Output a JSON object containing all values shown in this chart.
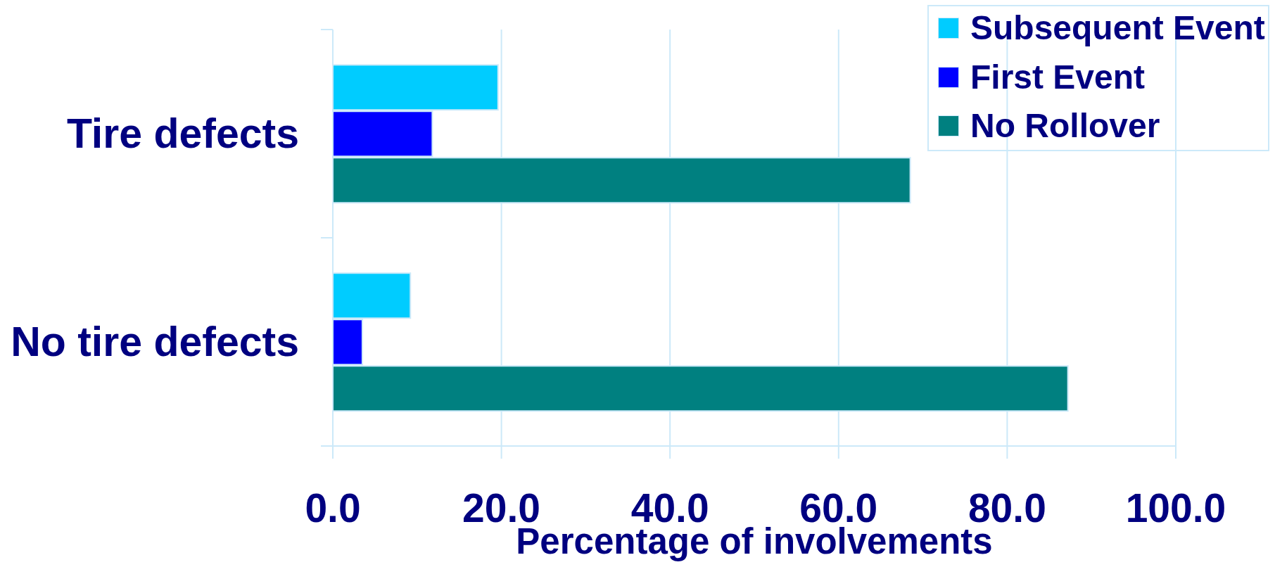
{
  "chart_data": {
    "type": "bar",
    "orientation": "horizontal",
    "categories": [
      "Tire defects",
      "No tire defects"
    ],
    "series": [
      {
        "name": "Subsequent Event",
        "color": "#00ccff",
        "values": [
          19.6,
          9.2
        ]
      },
      {
        "name": "First Event",
        "color": "#0000ff",
        "values": [
          11.8,
          3.5
        ]
      },
      {
        "name": "No Rollover",
        "color": "#008080",
        "values": [
          68.5,
          87.2
        ]
      }
    ],
    "xlabel": "Percentage of involvements",
    "xlim": [
      0,
      100
    ],
    "xticks": [
      {
        "value": 0,
        "label": "0.0"
      },
      {
        "value": 20,
        "label": "20.0"
      },
      {
        "value": 40,
        "label": "40.0"
      },
      {
        "value": 60,
        "label": "60.0"
      },
      {
        "value": 80,
        "label": "80.0"
      },
      {
        "value": 100,
        "label": "100.0"
      }
    ],
    "grid": "x",
    "legend": "top right"
  }
}
